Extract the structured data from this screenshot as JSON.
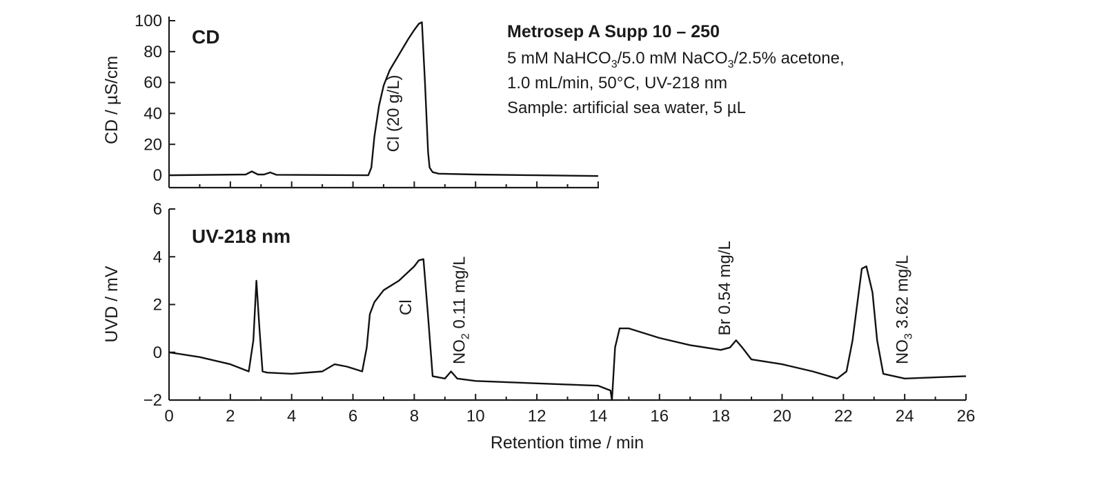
{
  "chart_data": [
    {
      "type": "line",
      "panel_label": "CD",
      "ylabel": "CD / µS/cm",
      "xlim": [
        0,
        14
      ],
      "ylim": [
        -8,
        100
      ],
      "yticks": [
        "0",
        "20",
        "40",
        "60",
        "80",
        "100"
      ],
      "ytick_values": [
        0,
        20,
        40,
        60,
        80,
        100
      ],
      "grid": false,
      "series": [
        {
          "name": "CD trace",
          "x": [
            0,
            2.5,
            2.7,
            2.9,
            3.1,
            3.3,
            3.5,
            6.5,
            6.6,
            6.7,
            6.85,
            7.0,
            7.2,
            7.5,
            7.8,
            8.0,
            8.15,
            8.25,
            8.35,
            8.45,
            8.5,
            8.6,
            8.8,
            10,
            12,
            14
          ],
          "y": [
            0,
            0.5,
            2.5,
            0.5,
            0.5,
            1.8,
            0.3,
            0,
            5,
            25,
            45,
            58,
            68,
            78,
            88,
            94,
            98,
            99,
            60,
            15,
            5,
            2,
            1,
            0.5,
            0,
            -0.5
          ]
        }
      ],
      "annotations": [
        {
          "text": "Cl (20 g/L)",
          "x": 7.5,
          "y": 15,
          "rotation": -90
        }
      ]
    },
    {
      "type": "line",
      "panel_label": "UV-218 nm",
      "ylabel": "UVD / mV",
      "xlabel": "Retention time / min",
      "xlim": [
        0,
        26
      ],
      "ylim": [
        -2,
        6
      ],
      "xticks": [
        "0",
        "2",
        "4",
        "6",
        "8",
        "10",
        "12",
        "14",
        "16",
        "18",
        "20",
        "22",
        "24",
        "26"
      ],
      "xtick_values": [
        0,
        2,
        4,
        6,
        8,
        10,
        12,
        14,
        16,
        18,
        20,
        22,
        24,
        26
      ],
      "yticks": [
        "−2",
        "0",
        "2",
        "4",
        "6"
      ],
      "ytick_values": [
        -2,
        0,
        2,
        4,
        6
      ],
      "grid": false,
      "series": [
        {
          "name": "UV trace",
          "x": [
            0,
            1,
            2,
            2.6,
            2.75,
            2.85,
            2.95,
            3.05,
            3.2,
            4,
            5,
            5.4,
            5.8,
            6.3,
            6.45,
            6.55,
            6.7,
            7.0,
            7.5,
            8.0,
            8.15,
            8.3,
            8.45,
            8.6,
            9.0,
            9.2,
            9.4,
            10,
            12,
            14,
            14.4,
            14.45,
            14.55,
            14.7,
            15,
            16,
            17,
            18,
            18.3,
            18.5,
            18.7,
            19,
            20,
            21,
            21.8,
            22.1,
            22.3,
            22.5,
            22.6,
            22.75,
            22.95,
            23.1,
            23.3,
            24,
            25,
            26
          ],
          "y": [
            0,
            -0.2,
            -0.5,
            -0.8,
            0.5,
            3.0,
            1.0,
            -0.8,
            -0.85,
            -0.9,
            -0.8,
            -0.5,
            -0.6,
            -0.8,
            0.2,
            1.6,
            2.1,
            2.6,
            3.0,
            3.6,
            3.85,
            3.9,
            1.5,
            -1.0,
            -1.1,
            -0.8,
            -1.1,
            -1.2,
            -1.3,
            -1.4,
            -1.6,
            -2.0,
            0.2,
            1.0,
            1.0,
            0.6,
            0.3,
            0.1,
            0.2,
            0.5,
            0.2,
            -0.3,
            -0.5,
            -0.8,
            -1.1,
            -0.8,
            0.5,
            2.5,
            3.5,
            3.6,
            2.5,
            0.5,
            -0.9,
            -1.1,
            -1.05,
            -1.0
          ]
        }
      ],
      "annotations": [
        {
          "text": "Cl",
          "x": 7.9,
          "y": 1.55,
          "rotation": -90
        },
        {
          "text": "NO",
          "subscript": "2",
          "suffix": " 0.11 mg/L",
          "x": 9.65,
          "y": -0.5,
          "rotation": -90
        },
        {
          "text": "Br 0.54 mg/L",
          "x": 18.3,
          "y": 0.7,
          "rotation": -90
        },
        {
          "text": "NO",
          "subscript": "3",
          "suffix": " 3.62 mg/L",
          "x": 24.1,
          "y": -0.5,
          "rotation": -90
        }
      ]
    }
  ],
  "info": {
    "title": "Metrosep A Supp 10 – 250",
    "line1_a": "5 mM NaHCO",
    "line1_sub1": "3",
    "line1_b": "/5.0 mM NaCO",
    "line1_sub2": "3",
    "line1_c": "/2.5% acetone,",
    "line2": "1.0 mL/min, 50°C, UV-218 nm",
    "line3": "Sample: artificial sea water, 5 µL"
  }
}
